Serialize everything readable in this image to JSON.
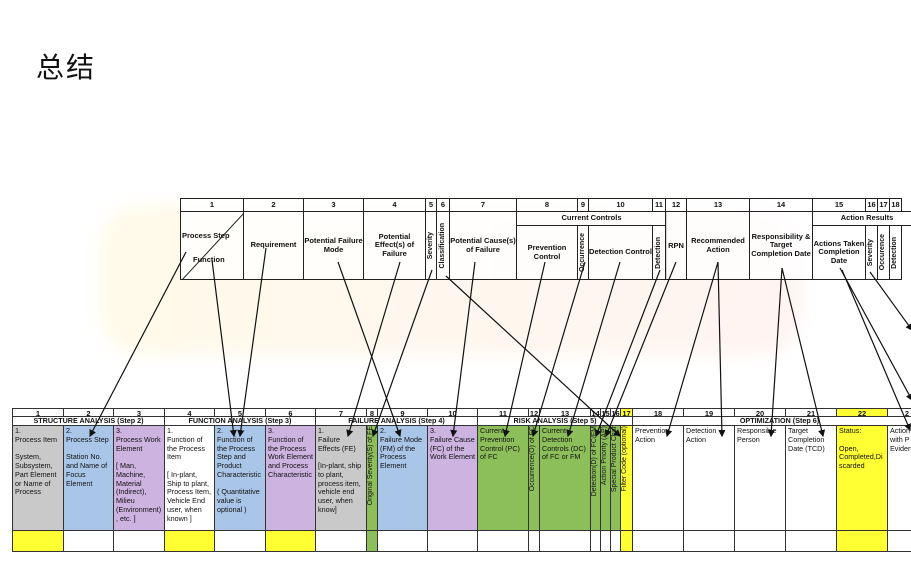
{
  "title": "总结",
  "old_table": {
    "numbers": [
      "1",
      "2",
      "3",
      "4",
      "5",
      "6",
      "7",
      "8",
      "9",
      "10",
      "11",
      "12",
      "13",
      "14",
      "15",
      "16",
      "17",
      "18"
    ],
    "current_controls": "Current Controls",
    "action_results": "Action Results",
    "process_step": "Process Step",
    "function": "Function",
    "requirement": "Requirement",
    "failure_mode": "Potential Failure Mode",
    "failure_effects": "Potential Effect(s) of Failure",
    "severity": "Severity",
    "classification": "Classification",
    "causes": "Potential Cause(s) of Failure",
    "prevention": "Prevention Control",
    "occurrence": "Occurrence",
    "detection_control": "Detection Control",
    "detection": "Detection",
    "rpn": "RPN",
    "recommended": "Recommended Action",
    "responsibility": "Responsibility & Target Completion Date",
    "actions_taken": "Actions Taken Completion Date",
    "severity2": "Severity",
    "occurrence2": "Occurence",
    "detection2": "Detection"
  },
  "new_table": {
    "numbers": [
      "1",
      "2",
      "3",
      "4",
      "5",
      "6",
      "7",
      "8",
      "9",
      "10",
      "11",
      "12",
      "13",
      "14",
      "15",
      "16",
      "17",
      "18",
      "19",
      "20",
      "21",
      "22",
      "2"
    ],
    "steps": {
      "structure": "STRUCTURE ANALYSIS  (Step 2)",
      "function": "FUNCTION ANALYSIS  (Step 3)",
      "failure": "FAILURE ANALYSIS  (Step 4)",
      "risk": "RISK ANALYSIS  (Step 5)",
      "optimization": "OPTIMIZATION  (Step 6)"
    },
    "c1": "1.\nProcess Item\n\nSystem,\nSubsystem,\nPart Element\nor Name of\nProcess",
    "c2": "2.\nProcess Step\n\nStation No.\nand Name of\nFocus\nElement",
    "c3": "3.\nProcess Work\nElement\n\n[ Man,\nMachine,\nMaterial\n(Indirect),\nMilieu\n(Environment)\n, etc. ]",
    "c4": "1.\nFunction of\nthe Process\nItem\n\n[ In-plant,\nShip to plant,\nProcess Item,\nVehicle End\nuser, when\nknown ]",
    "c5": "2.\nFunction of\nthe Process\nStep and\nProduct\nCharacteristic\n\n( Quantitative\nvalue is\noptional )",
    "c6": "3.\nFunction of\nthe Process\nWork Element\nand Process\nCharacteristic",
    "c7": "1.\nFailure\nEffects (FE)\n\n[In-plant, ship\nto plant,\nprocess item,\nvehicle end\nuser, when\nknow]",
    "c8": "Original Severity(S) of FE",
    "c9": "2.\nFailure Mode\n(FM) of the\nProcess\nElement",
    "c10": "3.\nFailure Cause\n(FC) of the\nWork Element",
    "c11": "Current\nPrevention\nControl (PC)\nof FC",
    "c12": "Occurrence(O) of FC",
    "c13": "Current\nDetection\nControls (DC)\nof FC or FM",
    "c14": "Detection(D) of FC/FM",
    "c15": "Action Priority (AP)",
    "c16": "Special Product Char",
    "c17": "Filter Code (optional)",
    "c18": "Prevention\nAction",
    "c19": "Detection\nAction",
    "c20": "Responsible\nPerson",
    "c21": "Target\nCompletion\nDate (TCD)",
    "c22": "Status:\n\nOpen,\nCompleted,Di\nscarded",
    "c23": "Action\nwith P\nEviden"
  }
}
